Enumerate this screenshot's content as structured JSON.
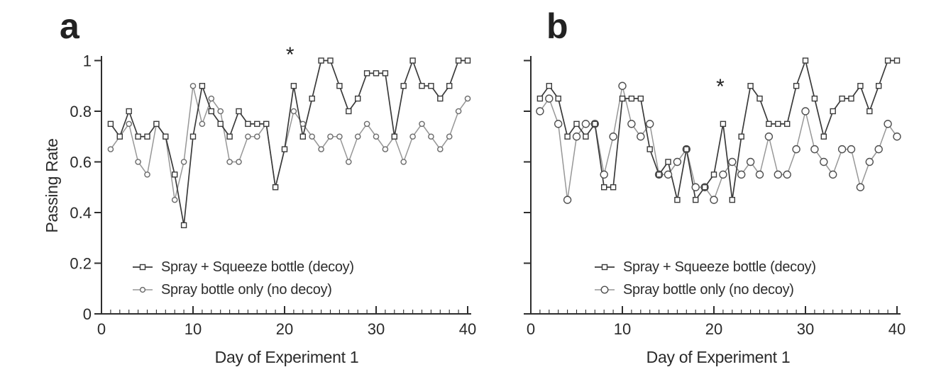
{
  "figure": {
    "description": "Two-panel line chart of daily passing rates for two bottle conditions over 40 days",
    "background_color": "#ffffff",
    "axis_color": "#2e2e2e",
    "text_color": "#2a2a2a"
  },
  "chart_data": [
    {
      "type": "line",
      "panel_label": "a",
      "title": "",
      "xlabel": "Day of Experiment 1",
      "ylabel": "Passing Rate",
      "xlim": [
        0,
        40
      ],
      "ylim": [
        0,
        1
      ],
      "x_tick_values": [
        0,
        10,
        20,
        30,
        40
      ],
      "x_tick_labels": [
        "0",
        "10",
        "20",
        "30",
        "40"
      ],
      "x_minor_tick_step": 1,
      "y_tick_values": [
        1,
        0.8,
        0.6,
        0.4,
        0.2,
        0
      ],
      "y_tick_labels": [
        "1",
        "0.8",
        "0.6",
        "0.4",
        "0.2",
        "0"
      ],
      "show_y_tick_labels": true,
      "grid": false,
      "legend_position": "lower-left-inside",
      "annotation": {
        "text": "*",
        "x": 20.6,
        "y": 1.04
      },
      "x": [
        1,
        2,
        3,
        4,
        5,
        6,
        7,
        8,
        9,
        10,
        11,
        12,
        13,
        14,
        15,
        16,
        17,
        18,
        19,
        20,
        21,
        22,
        23,
        24,
        25,
        26,
        27,
        28,
        29,
        30,
        31,
        32,
        33,
        34,
        35,
        36,
        37,
        38,
        39,
        40
      ],
      "series": [
        {
          "name": "Spray + Squeeze bottle (decoy)",
          "marker": "square",
          "color": "#3a3a3a",
          "marker_stroke": "#3a3a3a",
          "marker_fill": "#ffffff",
          "values": [
            0.75,
            0.7,
            0.8,
            0.7,
            0.7,
            0.75,
            0.7,
            0.55,
            0.35,
            0.7,
            0.9,
            0.8,
            0.75,
            0.7,
            0.8,
            0.75,
            0.75,
            0.75,
            0.5,
            0.65,
            0.9,
            0.7,
            0.85,
            1,
            1,
            0.9,
            0.8,
            0.85,
            0.95,
            0.95,
            0.95,
            0.7,
            0.9,
            1,
            0.9,
            0.9,
            0.85,
            0.9,
            1,
            1
          ]
        },
        {
          "name": "Spray bottle only (no decoy)",
          "marker": "circle",
          "color": "#979797",
          "marker_stroke": "#6a6a6a",
          "marker_fill": "#fbfbfb",
          "values": [
            0.65,
            0.7,
            0.75,
            0.6,
            0.55,
            0.75,
            0.7,
            0.45,
            0.6,
            0.9,
            0.75,
            0.85,
            0.8,
            0.6,
            0.6,
            0.7,
            0.7,
            0.75,
            0.5,
            0.65,
            0.8,
            0.75,
            0.7,
            0.65,
            0.7,
            0.7,
            0.6,
            0.7,
            0.75,
            0.7,
            0.65,
            0.7,
            0.6,
            0.7,
            0.75,
            0.7,
            0.65,
            0.7,
            0.8,
            0.85
          ]
        }
      ]
    },
    {
      "type": "line",
      "panel_label": "b",
      "title": "",
      "xlabel": "Day of Experiment 1",
      "ylabel": "",
      "xlim": [
        0,
        40
      ],
      "ylim": [
        0,
        1
      ],
      "x_tick_values": [
        0,
        10,
        20,
        30,
        40
      ],
      "x_tick_labels": [
        "0",
        "10",
        "20",
        "30",
        "40"
      ],
      "x_minor_tick_step": 1,
      "y_tick_values": [
        1,
        0.8,
        0.6,
        0.4,
        0.2,
        0
      ],
      "y_tick_labels": [],
      "show_y_tick_labels": false,
      "grid": false,
      "legend_position": "lower-left-inside",
      "annotation": {
        "text": "*",
        "x": 20.7,
        "y": 0.915
      },
      "x": [
        1,
        2,
        3,
        4,
        5,
        6,
        7,
        8,
        9,
        10,
        11,
        12,
        13,
        14,
        15,
        16,
        17,
        18,
        19,
        20,
        21,
        22,
        23,
        24,
        25,
        26,
        27,
        28,
        29,
        30,
        31,
        32,
        33,
        34,
        35,
        36,
        37,
        38,
        39,
        40
      ],
      "series": [
        {
          "name": "Spray + Squeeze bottle (decoy)",
          "marker": "square",
          "color": "#3a3a3a",
          "marker_stroke": "#3a3a3a",
          "marker_fill": "#ffffff",
          "values": [
            0.85,
            0.9,
            0.85,
            0.7,
            0.75,
            0.7,
            0.75,
            0.5,
            0.5,
            0.85,
            0.85,
            0.85,
            0.65,
            0.55,
            0.6,
            0.45,
            0.65,
            0.45,
            0.5,
            0.55,
            0.75,
            0.45,
            0.7,
            0.9,
            0.85,
            0.75,
            0.75,
            0.75,
            0.9,
            1,
            0.85,
            0.7,
            0.8,
            0.85,
            0.85,
            0.9,
            0.8,
            0.9,
            1,
            1
          ]
        },
        {
          "name": "Spray bottle only (no decoy)",
          "marker": "circle",
          "color": "#979797",
          "marker_stroke": "#4f4f4f",
          "marker_fill": "#ffffff",
          "values": [
            0.8,
            0.85,
            0.75,
            0.45,
            0.7,
            0.75,
            0.75,
            0.55,
            0.7,
            0.9,
            0.75,
            0.7,
            0.75,
            0.55,
            0.55,
            0.6,
            0.65,
            0.5,
            0.5,
            0.45,
            0.55,
            0.6,
            0.55,
            0.6,
            0.55,
            0.7,
            0.55,
            0.55,
            0.65,
            0.8,
            0.65,
            0.6,
            0.55,
            0.65,
            0.65,
            0.5,
            0.6,
            0.65,
            0.75,
            0.7
          ]
        }
      ]
    }
  ]
}
